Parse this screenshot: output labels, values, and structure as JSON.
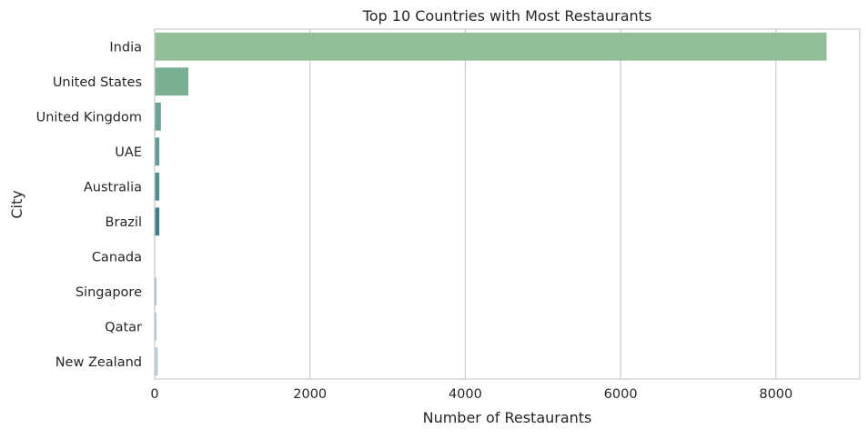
{
  "chart_data": {
    "type": "bar",
    "orientation": "horizontal",
    "title": "Top 10 Countries with Most Restaurants",
    "xlabel": "Number of Restaurants",
    "ylabel": "City",
    "xlim": [
      0,
      9080
    ],
    "xticks": [
      0,
      2000,
      4000,
      6000,
      8000
    ],
    "grid": "vertical",
    "categories": [
      "India",
      "United States",
      "United Kingdom",
      "UAE",
      "Australia",
      "Brazil",
      "Canada",
      "Singapore",
      "Qatar",
      "New Zealand"
    ],
    "values": [
      8652,
      434,
      80,
      60,
      60,
      60,
      4,
      20,
      20,
      40
    ],
    "colors": [
      "#93bf98",
      "#7aaf94",
      "#6aa494",
      "#5f9c96",
      "#4f8f90",
      "#3f7e88",
      "#6f9ea8",
      "#8fb1b8",
      "#9bb7c5",
      "#b8c9d9"
    ]
  }
}
